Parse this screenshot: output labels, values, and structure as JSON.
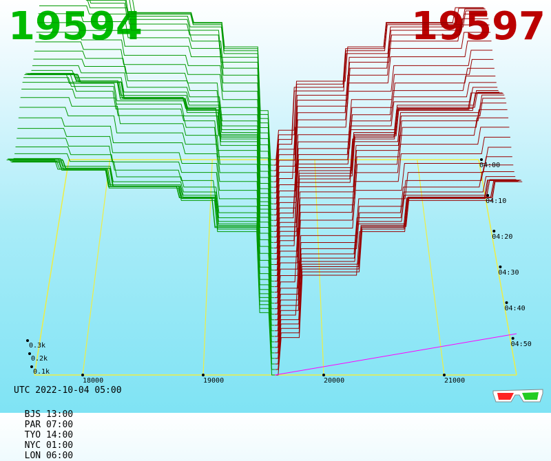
{
  "header": {
    "bid": "19594",
    "ask": "19597"
  },
  "colors": {
    "bid": "#00bb00",
    "ask": "#bb0000",
    "bid_line": "#009900",
    "ask_line": "#990000",
    "grid": "#eeee44",
    "depth_axis": "#ff00ff"
  },
  "footer": {
    "utc": "UTC 2022-10-04 05:00",
    "cities": [
      {
        "label": "BJS 13:00"
      },
      {
        "label": "PAR 07:00"
      },
      {
        "label": "TYO 14:00"
      },
      {
        "label": "NYC 01:00"
      },
      {
        "label": "LON 06:00"
      }
    ]
  },
  "icons": {
    "glasses": "3d-glasses-icon"
  },
  "chart_data": {
    "type": "area",
    "title": "",
    "x_ticks": [
      {
        "value": 18000,
        "label": "18000"
      },
      {
        "value": 19000,
        "label": "19000"
      },
      {
        "value": 20000,
        "label": "20000"
      },
      {
        "value": 21000,
        "label": "21000"
      }
    ],
    "y_ticks": [
      {
        "value": 100,
        "label": "0.1k"
      },
      {
        "value": 200,
        "label": "0.2k"
      },
      {
        "value": 300,
        "label": "0.3k"
      }
    ],
    "time_ticks": [
      {
        "label": "04:00"
      },
      {
        "label": "04:10"
      },
      {
        "label": "04:20"
      },
      {
        "label": "04:30"
      },
      {
        "label": "04:40"
      },
      {
        "label": "04:50"
      }
    ],
    "price_range": [
      17600,
      21600
    ],
    "mid_price": 19595,
    "slices": 40,
    "bid_depth_steps": [
      {
        "price": 19594,
        "depth": 0
      },
      {
        "price": 19560,
        "depth": 100
      },
      {
        "price": 19450,
        "depth": 230
      },
      {
        "price": 19100,
        "depth": 280
      },
      {
        "price": 18800,
        "depth": 300
      },
      {
        "price": 18200,
        "depth": 330
      },
      {
        "price": 17800,
        "depth": 345
      }
    ],
    "ask_depth_steps": [
      {
        "price": 19597,
        "depth": 0
      },
      {
        "price": 19630,
        "depth": 60
      },
      {
        "price": 19800,
        "depth": 160
      },
      {
        "price": 20300,
        "depth": 230
      },
      {
        "price": 20700,
        "depth": 280
      },
      {
        "price": 21400,
        "depth": 310
      }
    ]
  }
}
